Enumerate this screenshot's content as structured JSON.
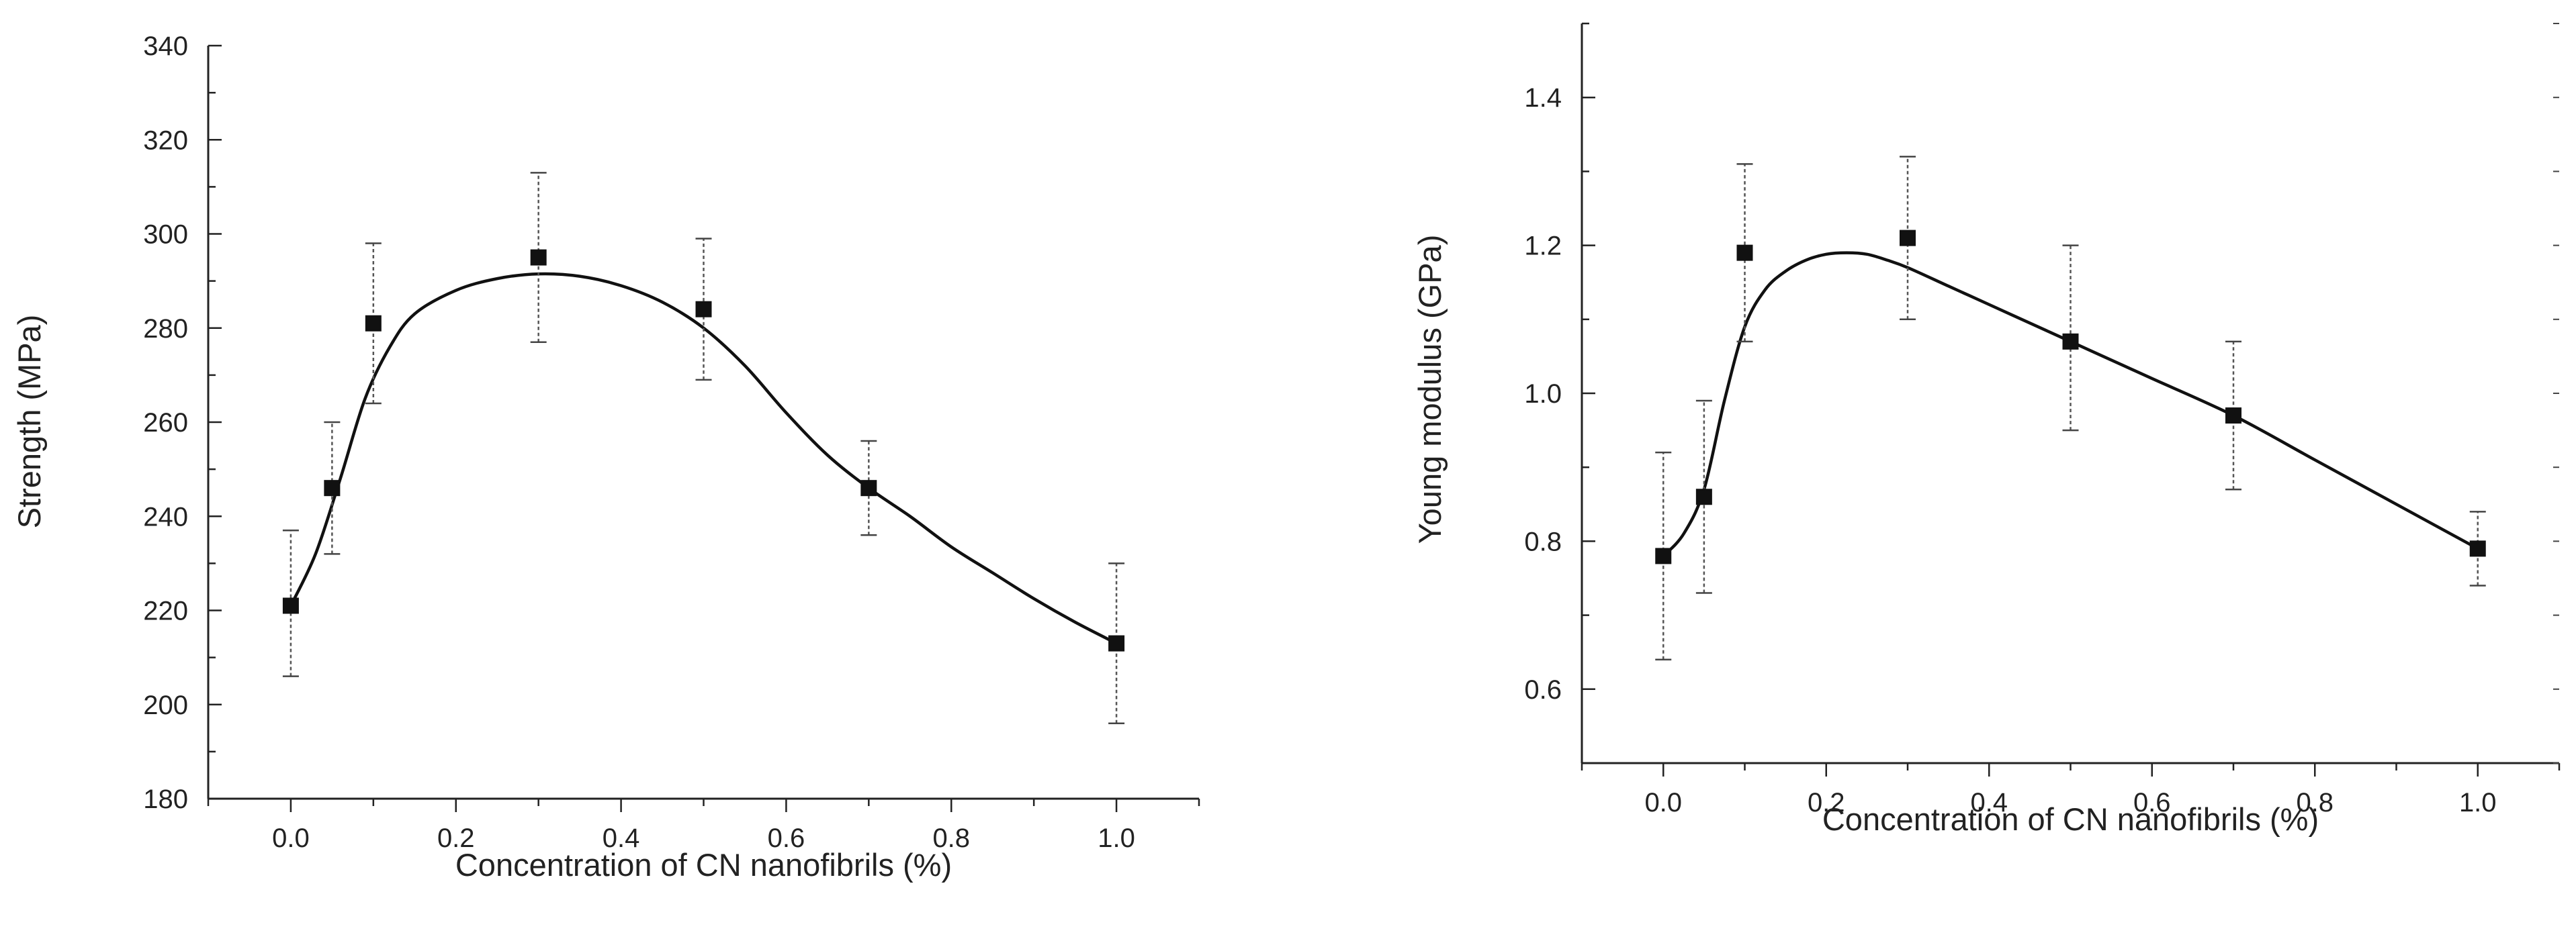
{
  "chart_data": [
    {
      "type": "scatter",
      "title": "",
      "xlabel": "Concentration of CN nanofibrils (%)",
      "ylabel": "Strength (MPa)",
      "xlim": [
        -0.1,
        1.1
      ],
      "ylim": [
        180,
        340
      ],
      "xticks": [
        0.0,
        0.2,
        0.4,
        0.6,
        0.8,
        1.0
      ],
      "xtick_labels": [
        "0.0",
        "0.2",
        "0.4",
        "0.6",
        "0.8",
        "1.0"
      ],
      "yticks": [
        180,
        200,
        220,
        240,
        260,
        280,
        300,
        320,
        340
      ],
      "ytick_labels": [
        "180",
        "200",
        "220",
        "240",
        "260",
        "280",
        "300",
        "320",
        "340"
      ],
      "series": [
        {
          "name": "Strength",
          "x": [
            0.0,
            0.05,
            0.1,
            0.3,
            0.5,
            0.7,
            1.0
          ],
          "y": [
            221,
            246,
            281,
            295,
            284,
            246,
            213
          ],
          "err_low": [
            206,
            232,
            264,
            277,
            269,
            236,
            196
          ],
          "err_high": [
            237,
            260,
            298,
            313,
            299,
            256,
            230
          ]
        }
      ],
      "fit_curve": {
        "x": [
          0.0,
          0.03,
          0.06,
          0.09,
          0.12,
          0.15,
          0.2,
          0.25,
          0.3,
          0.35,
          0.4,
          0.45,
          0.5,
          0.55,
          0.6,
          0.65,
          0.7,
          0.75,
          0.8,
          0.85,
          0.9,
          0.95,
          1.0
        ],
        "y": [
          221,
          232,
          248,
          265,
          276,
          283,
          288,
          290.5,
          291.5,
          291,
          289,
          285.5,
          280,
          272,
          262,
          253,
          246,
          240,
          233.5,
          228,
          222.5,
          217.5,
          213
        ]
      }
    },
    {
      "type": "scatter",
      "title": "",
      "xlabel": "Concentration of CN nanofibrils (%)",
      "ylabel": "Young modulus (GPa)",
      "xlim": [
        -0.1,
        1.1
      ],
      "ylim": [
        0.5,
        1.5
      ],
      "xticks": [
        0.0,
        0.2,
        0.4,
        0.6,
        0.8,
        1.0
      ],
      "xtick_labels": [
        "0.0",
        "0.2",
        "0.4",
        "0.6",
        "0.8",
        "1.0"
      ],
      "yticks": [
        0.6,
        0.8,
        1.0,
        1.2,
        1.4
      ],
      "ytick_labels": [
        "0.6",
        "0.8",
        "1.0",
        "1.2",
        "1.4"
      ],
      "series": [
        {
          "name": "Young modulus",
          "x": [
            0.0,
            0.05,
            0.1,
            0.3,
            0.5,
            0.7,
            1.0
          ],
          "y": [
            0.78,
            0.86,
            1.19,
            1.21,
            1.07,
            0.97,
            0.79
          ],
          "err_low": [
            0.64,
            0.73,
            1.07,
            1.1,
            0.95,
            0.87,
            0.74
          ],
          "err_high": [
            0.92,
            0.99,
            1.31,
            1.32,
            1.2,
            1.07,
            0.84
          ]
        }
      ],
      "fit_curve": {
        "x": [
          0.0,
          0.025,
          0.05,
          0.075,
          0.1,
          0.125,
          0.15,
          0.175,
          0.2,
          0.225,
          0.25,
          0.275,
          0.3,
          0.35,
          0.4,
          0.45,
          0.5,
          0.55,
          0.6,
          0.7,
          0.8,
          0.9,
          1.0
        ],
        "y": [
          0.78,
          0.81,
          0.87,
          0.99,
          1.09,
          1.14,
          1.165,
          1.18,
          1.188,
          1.19,
          1.188,
          1.18,
          1.17,
          1.145,
          1.12,
          1.095,
          1.07,
          1.045,
          1.02,
          0.97,
          0.91,
          0.85,
          0.79
        ]
      }
    }
  ]
}
